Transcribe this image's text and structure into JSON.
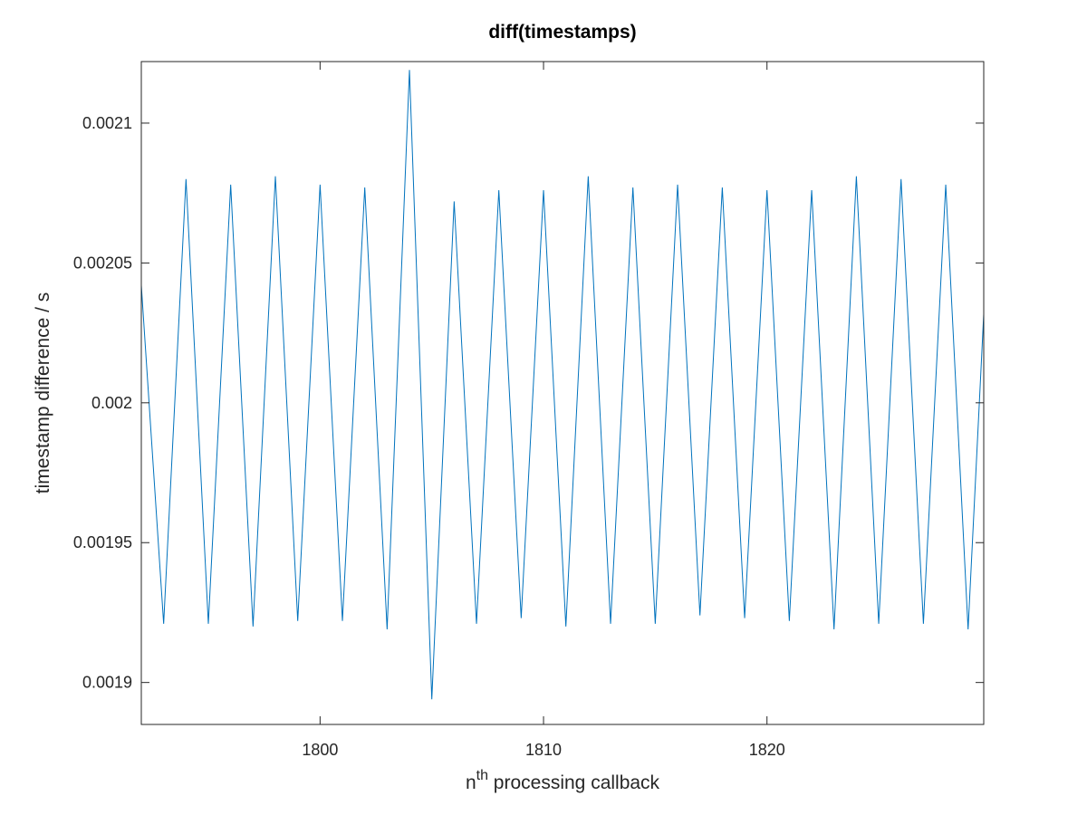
{
  "chart_data": {
    "type": "line",
    "title": "diff(timestamps)",
    "xlabel": {
      "base": "n",
      "superscript": "th",
      "rest": " processing callback"
    },
    "ylabel": "timestamp difference / s",
    "xlim": [
      1792.0,
      1829.7
    ],
    "ylim": [
      0.001885,
      0.002122
    ],
    "xticks": [
      1800,
      1810,
      1820
    ],
    "xtick_labels": [
      "1800",
      "1810",
      "1820"
    ],
    "yticks": [
      0.0019,
      0.00195,
      0.002,
      0.00205,
      0.0021
    ],
    "ytick_labels": [
      "0.0019",
      "0.00195",
      "0.002",
      "0.00205",
      "0.0021"
    ],
    "grid": false,
    "line_color": "#0072bd",
    "series": [
      {
        "x": [
          1792,
          1793,
          1794,
          1795,
          1796,
          1797,
          1798,
          1799,
          1800,
          1801,
          1802,
          1803,
          1804,
          1805,
          1806,
          1807,
          1808,
          1809,
          1810,
          1811,
          1812,
          1813,
          1814,
          1815,
          1816,
          1817,
          1818,
          1819,
          1820,
          1821,
          1822,
          1823,
          1824,
          1825,
          1826,
          1827,
          1828,
          1829,
          1830
        ],
        "y": [
          0.002042,
          0.001921,
          0.00208,
          0.001921,
          0.002078,
          0.00192,
          0.002081,
          0.001922,
          0.002078,
          0.001922,
          0.002077,
          0.001919,
          0.002119,
          0.001894,
          0.002072,
          0.001921,
          0.002076,
          0.001923,
          0.002076,
          0.00192,
          0.002081,
          0.001921,
          0.002077,
          0.001921,
          0.002078,
          0.001924,
          0.002077,
          0.001923,
          0.002076,
          0.001922,
          0.002076,
          0.001919,
          0.002081,
          0.001921,
          0.00208,
          0.001921,
          0.002078,
          0.001919,
          0.00208
        ]
      }
    ]
  }
}
